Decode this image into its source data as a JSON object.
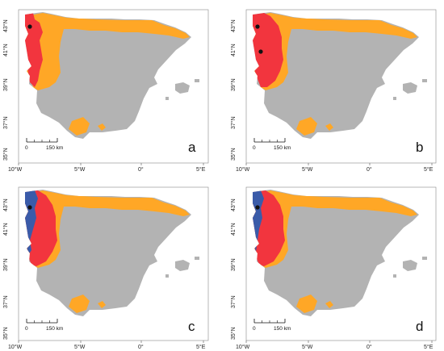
{
  "colors": {
    "land": "#b3b3b3",
    "orange": "#ffa726",
    "red": "#f2353e",
    "blue": "#3a5ba9",
    "point": "#111111",
    "frame": "#888888"
  },
  "axes": {
    "x_ticks": [
      "10°W",
      "5°W",
      "0°",
      "5°E"
    ],
    "y_ticks": [
      "35°N",
      "37°N",
      "39°N",
      "41°N",
      "43°N"
    ]
  },
  "scalebar": {
    "labels": [
      "0",
      "150 km"
    ]
  },
  "panels": [
    {
      "letter": "a",
      "layers": [
        "orange",
        "red"
      ],
      "points": 1
    },
    {
      "letter": "b",
      "layers": [
        "orange",
        "red"
      ],
      "points": 2
    },
    {
      "letter": "c",
      "layers": [
        "orange",
        "red",
        "blue"
      ],
      "points": 1
    },
    {
      "letter": "d",
      "layers": [
        "orange",
        "red",
        "blue"
      ],
      "points": 1
    }
  ]
}
